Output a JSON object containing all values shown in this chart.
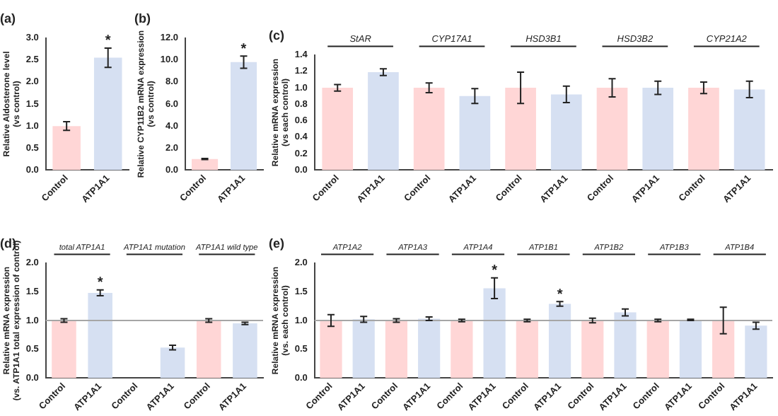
{
  "chart_data": [
    {
      "type": "bar",
      "title": "(a)",
      "ylabel": "Relative Aldosterone level\n(vs control)",
      "categories": [
        "Control",
        "ATP1A1"
      ],
      "values": [
        1.0,
        2.55
      ],
      "errors": [
        0.1,
        0.22
      ],
      "colors": [
        "#ffd6d6",
        "#d6e0f2"
      ],
      "ylim": [
        0,
        3
      ],
      "yticks": [
        {
          "value": 0,
          "label": "0.0"
        },
        {
          "value": 0.5,
          "label": "0.5"
        },
        {
          "value": 1,
          "label": "1.0"
        },
        {
          "value": 1.5,
          "label": "1.5"
        },
        {
          "value": 2,
          "label": "2.0"
        },
        {
          "value": 2.5,
          "label": "2.5"
        },
        {
          "value": 3,
          "label": "3.0"
        }
      ],
      "annotations": [
        {
          "text": "*",
          "x": "ATP1A1",
          "y": 2.77
        }
      ],
      "grid": false,
      "legend": false
    },
    {
      "type": "bar",
      "title": "(b)",
      "ylabel": "Relative CYP11B2 mRNA expression\n(vs control)",
      "categories": [
        "Control",
        "ATP1A1"
      ],
      "values": [
        1.0,
        9.8
      ],
      "errors": [
        0.05,
        0.55
      ],
      "colors": [
        "#ffd6d6",
        "#d6e0f2"
      ],
      "ylim": [
        0,
        12
      ],
      "yticks": [
        {
          "value": 0,
          "label": "0.0"
        },
        {
          "value": 2,
          "label": "2.0"
        },
        {
          "value": 4,
          "label": "4.0"
        },
        {
          "value": 6,
          "label": "6.0"
        },
        {
          "value": 8,
          "label": "8.0"
        },
        {
          "value": 10,
          "label": "10.0"
        },
        {
          "value": 12,
          "label": "12.0"
        }
      ],
      "annotations": [
        {
          "text": "*",
          "x": "ATP1A1",
          "y": 10.35
        }
      ],
      "grid": false,
      "legend": false
    },
    {
      "type": "bar",
      "title": "(c)",
      "ylabel": "Relative mRNA expression\n(vs each control)",
      "categories": [
        "Control",
        "ATP1A1",
        "Control",
        "ATP1A1",
        "Control",
        "ATP1A1",
        "Control",
        "ATP1A1",
        "Control",
        "ATP1A1"
      ],
      "values": [
        1.0,
        1.19,
        1.0,
        0.9,
        1.0,
        0.92,
        1.0,
        1.0,
        1.0,
        0.98
      ],
      "errors": [
        0.04,
        0.04,
        0.06,
        0.09,
        0.19,
        0.1,
        0.11,
        0.08,
        0.07,
        0.1
      ],
      "colors": [
        "#ffd6d6",
        "#d6e0f2",
        "#ffd6d6",
        "#d6e0f2",
        "#ffd6d6",
        "#d6e0f2",
        "#ffd6d6",
        "#d6e0f2",
        "#ffd6d6",
        "#d6e0f2"
      ],
      "ylim": [
        0,
        1.4
      ],
      "yticks": [
        {
          "value": 0,
          "label": "0.0"
        },
        {
          "value": 0.2,
          "label": "0.2"
        },
        {
          "value": 0.4,
          "label": "0.4"
        },
        {
          "value": 0.6,
          "label": "0.6"
        },
        {
          "value": 0.8,
          "label": "0.8"
        },
        {
          "value": 1,
          "label": "1.0"
        },
        {
          "value": 1.2,
          "label": "1.2"
        },
        {
          "value": 1.4,
          "label": "1.4"
        }
      ],
      "annotations": [
        "StAR",
        "CYP17A1",
        "HSD3B1",
        "HSD3B2",
        "CYP21A2"
      ],
      "grid": false,
      "legend": false
    },
    {
      "type": "bar",
      "title": "(d)",
      "ylabel": "Relative mRNA expression\n(vs. ATP1A1 total expression of control)",
      "categories": [
        "Control",
        "ATP1A1",
        "Control",
        "ATP1A1",
        "Control",
        "ATP1A1"
      ],
      "values": [
        1.0,
        1.48,
        0,
        0.53,
        1.0,
        0.95
      ],
      "errors": [
        0.03,
        0.05,
        null,
        0.04,
        0.03,
        0.02
      ],
      "colors": [
        "#ffd6d6",
        "#d6e0f2",
        "#ffd6d6",
        "#d6e0f2",
        "#ffd6d6",
        "#d6e0f2"
      ],
      "ylim": [
        0,
        2
      ],
      "yticks": [
        {
          "value": 0,
          "label": "0.0"
        },
        {
          "value": 0.5,
          "label": "0.5"
        },
        {
          "value": 1,
          "label": "1.0"
        },
        {
          "value": 1.5,
          "label": "1.5"
        },
        {
          "value": 2,
          "label": "2.0"
        }
      ],
      "ref_lines": [
        {
          "axis": "y",
          "value": 1,
          "color": "#a6a6a6"
        }
      ],
      "annotations": [
        "total ATP1A1",
        "ATP1A1 mutation",
        "ATP1A1 wild type",
        {
          "text": "*",
          "x": "ATP1A1",
          "y": 1.53
        }
      ],
      "grid": false,
      "legend": false
    },
    {
      "type": "bar",
      "title": "(e)",
      "ylabel": "Relative mRNA expression\n(vs. each control)",
      "categories": [
        "Control",
        "ATP1A1",
        "Control",
        "ATP1A1",
        "Control",
        "ATP1A1",
        "Control",
        "ATP1A1",
        "Control",
        "ATP1A1",
        "Control",
        "ATP1A1",
        "Control",
        "ATP1A1"
      ],
      "values": [
        1.0,
        1.02,
        1.0,
        1.03,
        1.0,
        1.56,
        1.0,
        1.29,
        1.0,
        1.14,
        1.0,
        1.01,
        1.0,
        0.91
      ],
      "errors": [
        0.1,
        0.05,
        0.03,
        0.03,
        0.02,
        0.18,
        0.02,
        0.04,
        0.04,
        0.06,
        0.02,
        0.01,
        0.23,
        0.06
      ],
      "colors": [
        "#ffd6d6",
        "#d6e0f2",
        "#ffd6d6",
        "#d6e0f2",
        "#ffd6d6",
        "#d6e0f2",
        "#ffd6d6",
        "#d6e0f2",
        "#ffd6d6",
        "#d6e0f2",
        "#ffd6d6",
        "#d6e0f2",
        "#ffd6d6",
        "#d6e0f2"
      ],
      "ylim": [
        0,
        2
      ],
      "yticks": [
        {
          "value": 0,
          "label": "0.0"
        },
        {
          "value": 0.5,
          "label": "0.5"
        },
        {
          "value": 1,
          "label": "1.0"
        },
        {
          "value": 1.5,
          "label": "1.5"
        },
        {
          "value": 2,
          "label": "2.0"
        }
      ],
      "ref_lines": [
        {
          "axis": "y",
          "value": 1,
          "color": "#a6a6a6"
        }
      ],
      "annotations": [
        "ATP1A2",
        "ATP1A3",
        "ATP1A4",
        "ATP1B1",
        "ATP1B2",
        "ATP1B3",
        "ATP1B4",
        {
          "text": "*",
          "y": 1.74
        },
        {
          "text": "*",
          "y": 1.33
        }
      ],
      "grid": false,
      "legend": false
    }
  ]
}
